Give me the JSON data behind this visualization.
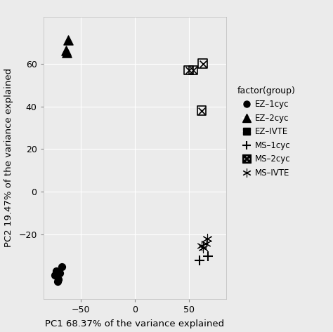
{
  "title": "",
  "xlabel": "PC1 68.37% of the variance explained",
  "ylabel": "PC2 19.47% of the variance explained",
  "legend_title": "factor(group)",
  "xlim": [
    -85,
    85
  ],
  "ylim": [
    -50,
    82
  ],
  "xticks": [
    -50,
    0,
    50
  ],
  "yticks": [
    -20,
    0,
    20,
    40,
    60
  ],
  "bg_color": "#EBEBEB",
  "grid_color": "white",
  "groups": {
    "EZ-1cyc": {
      "marker": "o",
      "points": [
        [
          -73,
          -37
        ],
        [
          -68,
          -35
        ],
        [
          -70,
          -38
        ],
        [
          -71,
          -41
        ],
        [
          -74,
          -39
        ],
        [
          -72,
          -42
        ]
      ]
    },
    "EZ-2cyc": {
      "marker": "^",
      "points": [
        [
          -62,
          71
        ],
        [
          -64,
          66
        ],
        [
          -63,
          65
        ]
      ]
    },
    "EZ-IVTE": {
      "marker": "s",
      "points": []
    },
    "MS-1cyc": {
      "marker": "+",
      "points": [
        [
          60,
          -32
        ],
        [
          68,
          -30
        ]
      ]
    },
    "MS-2cyc": {
      "marker": "boxtimes",
      "points": [
        [
          50,
          57
        ],
        [
          54,
          57
        ],
        [
          63,
          60
        ],
        [
          62,
          38
        ]
      ]
    },
    "MS-IVTE": {
      "marker": "*6",
      "points": [
        [
          62,
          -25
        ],
        [
          67,
          -22
        ],
        [
          63,
          -26
        ],
        [
          66,
          -24
        ]
      ]
    }
  }
}
